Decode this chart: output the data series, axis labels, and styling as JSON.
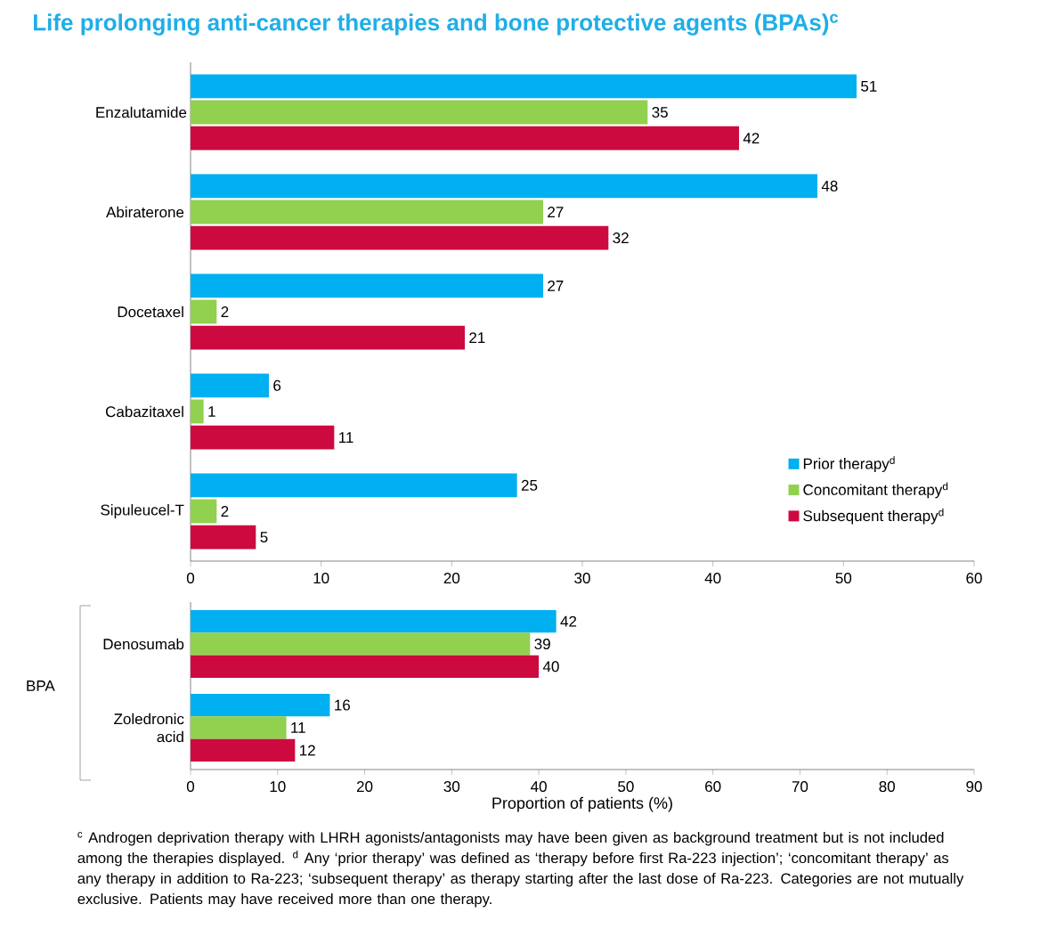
{
  "chart_data": [
    {
      "type": "bar",
      "orientation": "horizontal",
      "title": "Life prolonging anti-cancer therapies and bone protective agents (BPAs)$^{c}$",
      "categories": [
        "Enzalutamide",
        "Abiraterone",
        "Docetaxel",
        "Cabazitaxel",
        "Sipuleucel-T"
      ],
      "series": [
        {
          "name": "Prior therapy$^{d}$",
          "color": "#00b0f0",
          "values": [
            51,
            48,
            27,
            6,
            25
          ]
        },
        {
          "name": "Concomitant therapy$^{d}$",
          "color": "#92d050",
          "values": [
            35,
            27,
            2,
            1,
            2
          ]
        },
        {
          "name": "Subsequent therapy$^{d}$",
          "color": "#cc0a3f",
          "values": [
            42,
            32,
            21,
            11,
            5
          ]
        }
      ],
      "xlim": [
        0,
        60
      ],
      "xticks": [
        0,
        10,
        20,
        30,
        40,
        50,
        60
      ],
      "data_labels": true,
      "legend": "bottom right"
    },
    {
      "type": "bar",
      "orientation": "horizontal",
      "xlabel": "Proportion of patients (%)",
      "categories": [
        "Denosumab",
        "Zoledronic acid"
      ],
      "series": [
        {
          "color": "#00b0f0",
          "values": [
            42,
            16
          ]
        },
        {
          "color": "#92d050",
          "values": [
            39,
            11
          ]
        },
        {
          "color": "#cc0a3f",
          "values": [
            40,
            12
          ]
        }
      ],
      "xlim": [
        0,
        90
      ],
      "xticks": [
        0,
        10,
        20,
        30,
        40,
        50,
        60,
        70,
        80,
        90
      ],
      "data_labels": true,
      "annotations": [
        "BPA",
        "$^{c}$ Androgen deprivation therapy with LHRH agonists/antagonists may have been given as background treatment but is not included among the therapies displayed. $^{d}$ Any ‘prior therapy’ was defined as ‘therapy before first Ra-223 injection’; ‘concomitant therapy’ as any therapy in addition to Ra-223; ‘subsequent therapy’ as therapy starting after the last dose of Ra-223. Categories are not mutually exclusive. Patients may have received more than one therapy."
      ]
    }
  ]
}
